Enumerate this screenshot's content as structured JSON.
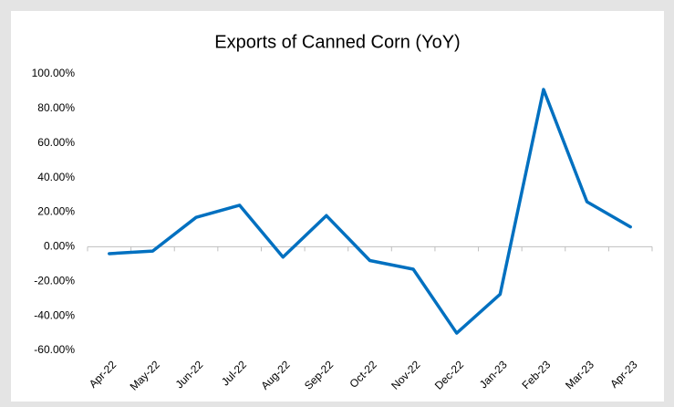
{
  "chart_data": {
    "type": "line",
    "title": "Exports of Canned  Corn (YoY)",
    "categories": [
      "Apr-22",
      "May-22",
      "Jun-22",
      "Jul-22",
      "Aug-22",
      "Sep-22",
      "Oct-22",
      "Nov-22",
      "Dec-22",
      "Jan-23",
      "Feb-23",
      "Mar-23",
      "Apr-23"
    ],
    "series": [
      {
        "name": "Exports of Canned Corn (YoY)",
        "color": "#0070c0",
        "values": [
          -4,
          -2.5,
          17,
          24,
          -6,
          18,
          -8,
          -13,
          -50,
          -27.5,
          91,
          26,
          11.5
        ]
      }
    ],
    "ylim": [
      -60,
      100
    ],
    "yticks": [
      {
        "value": -60,
        "label": "-60.00%"
      },
      {
        "value": -40,
        "label": "-40.00%"
      },
      {
        "value": -20,
        "label": "-20.00%"
      },
      {
        "value": 0,
        "label": "0.00%"
      },
      {
        "value": 20,
        "label": "20.00%"
      },
      {
        "value": 40,
        "label": "40.00%"
      },
      {
        "value": 60,
        "label": "60.00%"
      },
      {
        "value": 80,
        "label": "80.00%"
      },
      {
        "value": 100,
        "label": "100.00%"
      }
    ],
    "grid": false
  }
}
